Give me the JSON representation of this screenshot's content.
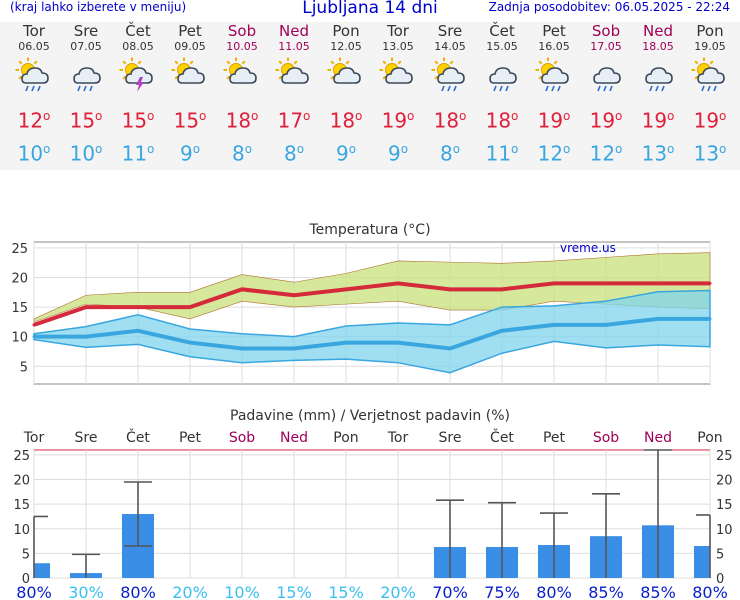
{
  "header": {
    "menu_hint": "(kraj lahko izberete v meniju)",
    "title": "Ljubljana 14 dni",
    "updated": "Zadnja posodobitev: 06.05.2025 - 22:24"
  },
  "forecast": [
    {
      "day": "Tor",
      "date": "06.05",
      "icon": "sun-cloud-rain-icon",
      "tmax": "12",
      "tmin": "10",
      "weekend": false
    },
    {
      "day": "Sre",
      "date": "07.05",
      "icon": "cloud-rain-icon",
      "tmax": "15",
      "tmin": "10",
      "weekend": false
    },
    {
      "day": "Čet",
      "date": "08.05",
      "icon": "sun-cloud-thunder-icon",
      "tmax": "15",
      "tmin": "11",
      "weekend": false
    },
    {
      "day": "Pet",
      "date": "09.05",
      "icon": "sun-cloud-icon",
      "tmax": "15",
      "tmin": "9",
      "weekend": false
    },
    {
      "day": "Sob",
      "date": "10.05",
      "icon": "sun-cloud-icon",
      "tmax": "18",
      "tmin": "8",
      "weekend": true
    },
    {
      "day": "Ned",
      "date": "11.05",
      "icon": "sun-cloud-icon",
      "tmax": "17",
      "tmin": "8",
      "weekend": true
    },
    {
      "day": "Pon",
      "date": "12.05",
      "icon": "sun-cloud-icon",
      "tmax": "18",
      "tmin": "9",
      "weekend": false
    },
    {
      "day": "Tor",
      "date": "13.05",
      "icon": "sun-cloud-icon",
      "tmax": "19",
      "tmin": "9",
      "weekend": false
    },
    {
      "day": "Sre",
      "date": "14.05",
      "icon": "sun-cloud-rain-icon",
      "tmax": "18",
      "tmin": "8",
      "weekend": false
    },
    {
      "day": "Čet",
      "date": "15.05",
      "icon": "cloud-rain-icon",
      "tmax": "18",
      "tmin": "11",
      "weekend": false
    },
    {
      "day": "Pet",
      "date": "16.05",
      "icon": "sun-cloud-rain-icon",
      "tmax": "19",
      "tmin": "12",
      "weekend": false
    },
    {
      "day": "Sob",
      "date": "17.05",
      "icon": "cloud-rain-icon",
      "tmax": "19",
      "tmin": "12",
      "weekend": true
    },
    {
      "day": "Ned",
      "date": "18.05",
      "icon": "cloud-rain-icon",
      "tmax": "19",
      "tmin": "13",
      "weekend": true
    },
    {
      "day": "Pon",
      "date": "19.05",
      "icon": "sun-cloud-rain-icon",
      "tmax": "19",
      "tmin": "13",
      "weekend": false
    }
  ],
  "chart_data": [
    {
      "type": "line",
      "title": "Temperatura (°C)",
      "watermark": "vreme.us",
      "grid": true,
      "ylim": [
        2,
        26
      ],
      "yticks": [
        "5",
        "10",
        "15",
        "20",
        "25"
      ],
      "x": [
        "06.05",
        "07.05",
        "08.05",
        "09.05",
        "10.05",
        "11.05",
        "12.05",
        "13.05",
        "14.05",
        "15.05",
        "16.05",
        "17.05",
        "18.05",
        "19.05"
      ],
      "colors": {
        "max": "#d42a3c",
        "min": "#3aa6e0",
        "max_band": "#c8e07a",
        "min_band": "#7fd4ec"
      },
      "series": [
        {
          "key": "max",
          "values": [
            12,
            15,
            15,
            15,
            18,
            17,
            18,
            19,
            18,
            18,
            19,
            19,
            19,
            19
          ],
          "band_low": [
            12.5,
            15.5,
            15,
            13,
            16,
            15,
            15.5,
            16,
            14.5,
            14.5,
            16,
            15.5,
            15,
            14.7
          ],
          "band_high": [
            13,
            17,
            17.5,
            17.5,
            20.5,
            19.2,
            20.7,
            22.8,
            22.6,
            22.4,
            22.8,
            23.4,
            24,
            24.2
          ]
        },
        {
          "key": "min",
          "values": [
            10,
            10,
            11,
            9,
            8,
            8,
            9,
            9,
            8,
            11,
            12,
            12,
            13,
            13
          ],
          "band_low": [
            9.5,
            8.2,
            8.7,
            6.6,
            5.6,
            6,
            6.2,
            5.6,
            3.9,
            7.2,
            9.2,
            8.1,
            8.6,
            8.3
          ],
          "band_high": [
            10.5,
            11.7,
            13.7,
            11.3,
            10.5,
            10,
            11.8,
            12.3,
            12,
            15,
            15.2,
            16,
            17.6,
            17.8
          ]
        }
      ]
    },
    {
      "type": "bar",
      "title": "Padavine (mm) / Verjetnost padavin (%)",
      "grid": true,
      "ylim": [
        0,
        26
      ],
      "yticks": [
        "0",
        "5",
        "10",
        "15",
        "20",
        "25"
      ],
      "categories": [
        "Tor",
        "Sre",
        "Čet",
        "Pet",
        "Sob",
        "Ned",
        "Pon",
        "Tor",
        "Sre",
        "Čet",
        "Pet",
        "Sob",
        "Ned",
        "Pon"
      ],
      "weekend": [
        false,
        false,
        false,
        false,
        true,
        true,
        false,
        false,
        false,
        false,
        false,
        true,
        true,
        false
      ],
      "values": [
        3,
        1,
        13,
        0,
        0,
        0,
        0,
        0,
        6.3,
        6.3,
        6.7,
        8.5,
        10.7,
        6.5
      ],
      "err_high": [
        12.5,
        4.8,
        19.5,
        0,
        0,
        0,
        0,
        0,
        15.8,
        15.3,
        13.2,
        17.1,
        26,
        12.8
      ],
      "err_low": [
        0,
        0,
        6.5,
        0,
        0,
        0,
        0,
        0,
        0,
        0,
        0,
        0,
        0,
        0
      ],
      "probability": [
        "80%",
        "30%",
        "80%",
        "20%",
        "10%",
        "15%",
        "15%",
        "20%",
        "70%",
        "75%",
        "80%",
        "85%",
        "85%",
        "80%"
      ],
      "prob_high": [
        true,
        false,
        true,
        false,
        false,
        false,
        false,
        false,
        true,
        true,
        true,
        true,
        true,
        true
      ],
      "colors": {
        "bar": "#3a8ee6",
        "err": "#555555",
        "prob_high": "#0a1ec8",
        "prob_low": "#3cc0ee"
      }
    }
  ]
}
